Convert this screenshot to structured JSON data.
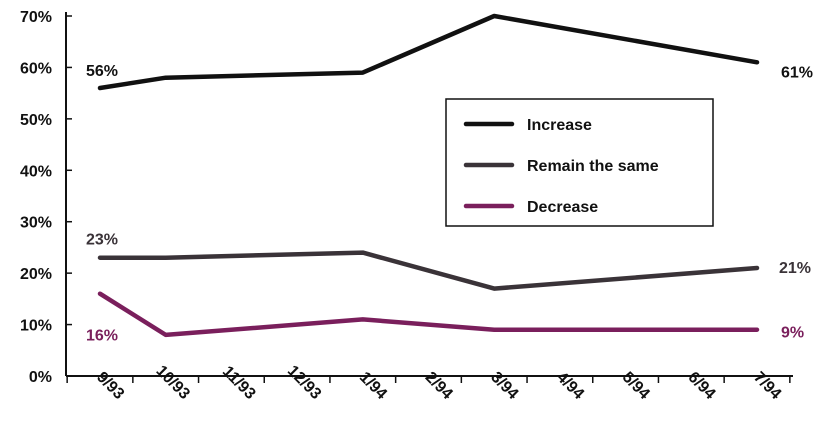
{
  "chart_data": {
    "type": "line",
    "categories": [
      "9/93",
      "10/93",
      "11/93",
      "12/93",
      "1/94",
      "2/94",
      "3/94",
      "4/94",
      "5/94",
      "6/94",
      "7/94"
    ],
    "ylim": [
      0,
      70
    ],
    "yticks": [
      0,
      10,
      20,
      30,
      40,
      50,
      60,
      70
    ],
    "ytick_labels": [
      "0%",
      "10%",
      "20%",
      "30%",
      "40%",
      "50%",
      "60%",
      "70%"
    ],
    "grid": false,
    "legend_position": "center-right",
    "series": [
      {
        "name": "Increase",
        "color": "#111111",
        "points": [
          [
            0,
            56
          ],
          [
            1,
            58
          ],
          [
            4,
            59
          ],
          [
            6,
            70
          ],
          [
            10,
            61
          ]
        ],
        "start_label": "56%",
        "end_label": "61%"
      },
      {
        "name": "Remain the same",
        "color": "#3a3338",
        "points": [
          [
            0,
            23
          ],
          [
            1,
            23
          ],
          [
            4,
            24
          ],
          [
            6,
            17
          ],
          [
            10,
            21
          ]
        ],
        "start_label": "23%",
        "end_label": "21%"
      },
      {
        "name": "Decrease",
        "color": "#7a1f5c",
        "points": [
          [
            0,
            16
          ],
          [
            1,
            8
          ],
          [
            4,
            11
          ],
          [
            6,
            9
          ],
          [
            10,
            9
          ]
        ],
        "start_label": "16%",
        "end_label": "9%"
      }
    ]
  }
}
